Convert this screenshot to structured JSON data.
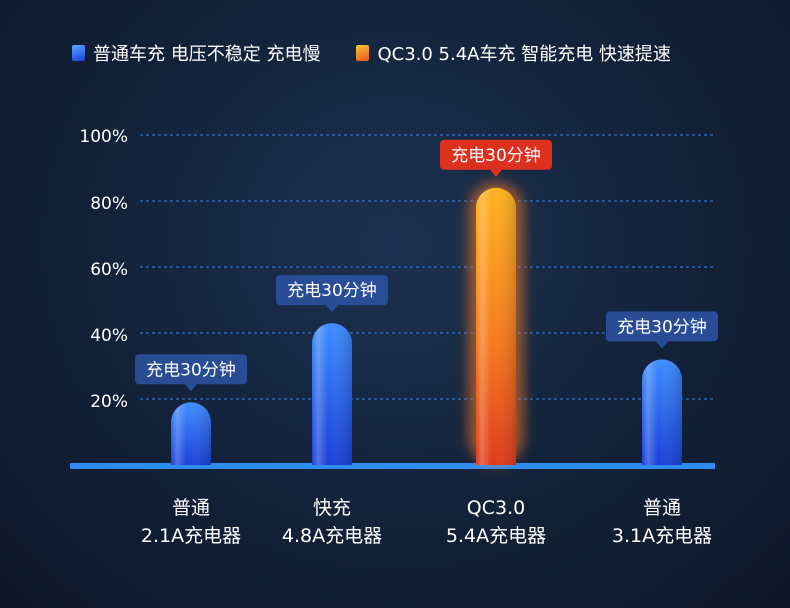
{
  "chart_data": {
    "type": "bar",
    "categories": [
      {
        "line1": "普通",
        "line2": "2.1A充电器"
      },
      {
        "line1": "快充",
        "line2": "4.8A充电器"
      },
      {
        "line1": "QC3.0",
        "line2": "5.4A充电器"
      },
      {
        "line1": "普通",
        "line2": "3.1A充电器"
      }
    ],
    "values": [
      19,
      43,
      84,
      32
    ],
    "bar_styles": [
      "blue",
      "blue",
      "orange",
      "blue"
    ],
    "data_labels": [
      "充电30分钟",
      "充电30分钟",
      "充电30分钟",
      "充电30分钟"
    ],
    "yticks": [
      "20%",
      "40%",
      "60%",
      "80%",
      "100%"
    ],
    "ylim": [
      0,
      100
    ],
    "grid": true,
    "legend_position": "top",
    "legend": [
      {
        "label": "普通车充 电压不稳定 充电慢",
        "style": "blue"
      },
      {
        "label": "QC3.0 5.4A车充 智能充电 快速提速",
        "style": "orange"
      }
    ]
  },
  "colors": {
    "blue_top": "#3d8dff",
    "blue_bottom": "#1a3fd8",
    "orange_top": "#ffb31f",
    "orange_bottom": "#e03a1a",
    "label_blue": "#2a4f9a",
    "label_red": "#e8321e",
    "grid": "#3f7fd0",
    "baseline": "#2e8cf0"
  }
}
